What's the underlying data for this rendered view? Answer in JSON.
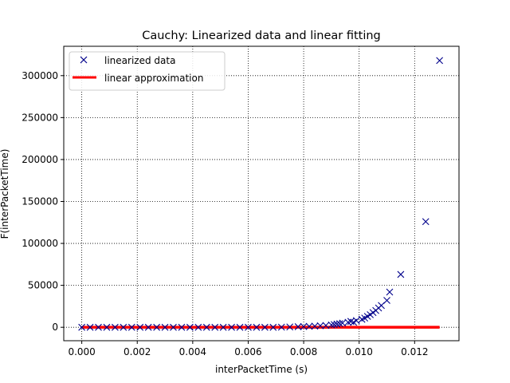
{
  "chart_data": {
    "type": "scatter",
    "title": "Cauchy: Linearized data and linear fitting",
    "xlabel": "interPacketTime (s)",
    "ylabel": "F(interPacketTime)",
    "xlim": [
      -0.00065,
      0.0136
    ],
    "ylim": [
      -16000,
      335000
    ],
    "xticks": [
      "0.000",
      "0.002",
      "0.004",
      "0.006",
      "0.008",
      "0.010",
      "0.012"
    ],
    "xtick_values": [
      0,
      0.002,
      0.004,
      0.006,
      0.008,
      0.01,
      0.012
    ],
    "yticks": [
      "0",
      "50000",
      "100000",
      "150000",
      "200000",
      "250000",
      "300000"
    ],
    "ytick_values": [
      0,
      50000,
      100000,
      150000,
      200000,
      250000,
      300000
    ],
    "grid": true,
    "legend_position": "top-left",
    "colors": {
      "data": "#00008b",
      "fit": "#ff0000"
    },
    "series": [
      {
        "name": "linearized data",
        "marker": "x",
        "color": "#00008b",
        "points": [
          [
            0.0,
            0
          ],
          [
            0.0003,
            0
          ],
          [
            0.0006,
            0
          ],
          [
            0.0009,
            0
          ],
          [
            0.0012,
            0
          ],
          [
            0.0015,
            0
          ],
          [
            0.0018,
            0
          ],
          [
            0.0021,
            0
          ],
          [
            0.0024,
            0
          ],
          [
            0.0027,
            0
          ],
          [
            0.003,
            0
          ],
          [
            0.0033,
            0
          ],
          [
            0.0036,
            0
          ],
          [
            0.0039,
            0
          ],
          [
            0.0042,
            0
          ],
          [
            0.0045,
            0
          ],
          [
            0.0048,
            0
          ],
          [
            0.0051,
            0
          ],
          [
            0.0054,
            0
          ],
          [
            0.0057,
            0
          ],
          [
            0.006,
            0
          ],
          [
            0.0063,
            0
          ],
          [
            0.0066,
            0
          ],
          [
            0.0069,
            0
          ],
          [
            0.0072,
            200
          ],
          [
            0.0075,
            400
          ],
          [
            0.0078,
            700
          ],
          [
            0.008,
            900
          ],
          [
            0.0082,
            1100
          ],
          [
            0.0084,
            1400
          ],
          [
            0.0086,
            1800
          ],
          [
            0.0088,
            2200
          ],
          [
            0.009,
            2800
          ],
          [
            0.0091,
            3300
          ],
          [
            0.0092,
            3800
          ],
          [
            0.0093,
            4300
          ],
          [
            0.0094,
            5000
          ],
          [
            0.0096,
            6000
          ],
          [
            0.0097,
            7000
          ],
          [
            0.0098,
            6000
          ],
          [
            0.0099,
            8000
          ],
          [
            0.0101,
            9500
          ],
          [
            0.0102,
            11000
          ],
          [
            0.0103,
            13000
          ],
          [
            0.0104,
            15000
          ],
          [
            0.0105,
            17500
          ],
          [
            0.0106,
            20000
          ],
          [
            0.0107,
            23000
          ],
          [
            0.0108,
            26000
          ],
          [
            0.011,
            32000
          ],
          [
            0.0111,
            42000
          ],
          [
            0.0115,
            63000
          ],
          [
            0.0124,
            126000
          ],
          [
            0.0129,
            318000
          ]
        ]
      },
      {
        "name": "linear approximation",
        "line": true,
        "color": "#ff0000",
        "points": [
          [
            0.0,
            0
          ],
          [
            0.0129,
            0
          ]
        ]
      }
    ]
  }
}
